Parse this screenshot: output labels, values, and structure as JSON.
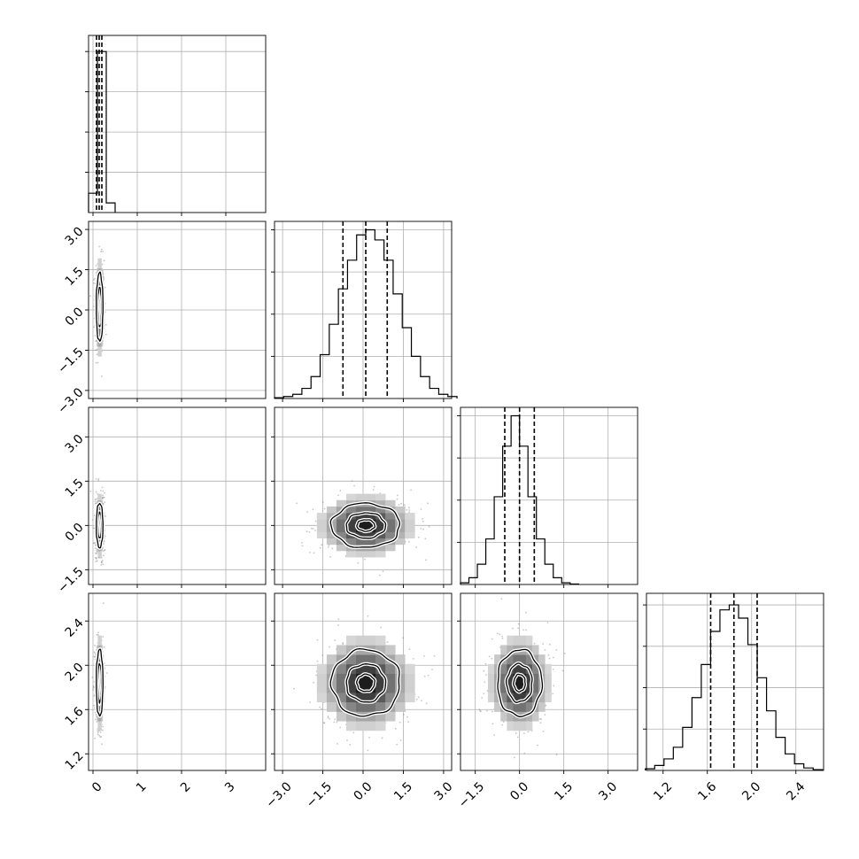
{
  "chart_data": {
    "type": "corner",
    "params": [
      {
        "range": [
          -0.1,
          3.9
        ],
        "ticks": [
          0,
          1,
          2,
          3
        ],
        "ticklabels": [
          "0",
          "1",
          "2",
          "3"
        ],
        "mean": 0.15,
        "sd": 0.05,
        "quantiles": [
          0.08,
          0.14,
          0.2
        ]
      },
      {
        "range": [
          -3.3,
          3.3
        ],
        "ticks": [
          -3.0,
          -1.5,
          0.0,
          1.5,
          3.0
        ],
        "ticklabels": [
          "−3.0",
          "−1.5",
          "0.0",
          "1.5",
          "3.0"
        ],
        "mean": 0.1,
        "sd": 0.85,
        "quantiles": [
          -0.75,
          0.1,
          0.9
        ]
      },
      {
        "range": [
          -2.0,
          4.0
        ],
        "ticks": [
          -1.5,
          0.0,
          1.5,
          3.0
        ],
        "ticklabels": [
          "−1.5",
          "0.0",
          "1.5",
          "3.0"
        ],
        "mean": 0.0,
        "sd": 0.5,
        "quantiles": [
          -0.5,
          0.0,
          0.5
        ]
      },
      {
        "range": [
          1.05,
          2.65
        ],
        "ticks": [
          1.2,
          1.6,
          2.0,
          2.4
        ],
        "ticklabels": [
          "1.2",
          "1.6",
          "2.0",
          "2.4"
        ],
        "mean": 1.84,
        "sd": 0.2,
        "quantiles": [
          1.63,
          1.84,
          2.05
        ]
      }
    ],
    "histograms": [
      {
        "param": 0,
        "bins": [
          -0.1,
          0.1,
          0.3,
          0.5
        ],
        "values": [
          0.12,
          1.0,
          0.06
        ],
        "ylim": [
          0,
          1.1
        ],
        "yticks": [
          0.25,
          0.5,
          0.75,
          1.0
        ]
      },
      {
        "param": 1,
        "values": [
          0.005,
          0.012,
          0.025,
          0.06,
          0.13,
          0.26,
          0.44,
          0.65,
          0.82,
          0.97,
          1.0,
          0.94,
          0.82,
          0.62,
          0.42,
          0.25,
          0.13,
          0.06,
          0.025,
          0.012
        ],
        "ylim": [
          0,
          1.05
        ],
        "yticks": [
          0.25,
          0.5,
          0.75,
          1.0
        ]
      },
      {
        "param": 2,
        "values": [
          0.01,
          0.04,
          0.12,
          0.27,
          0.52,
          0.82,
          1.0,
          0.82,
          0.52,
          0.27,
          0.12,
          0.04,
          0.01,
          0.003
        ],
        "ylim": [
          0,
          1.05
        ],
        "yticks": [
          0.25,
          0.5,
          0.75,
          1.0
        ]
      },
      {
        "param": 3,
        "values": [
          0.01,
          0.03,
          0.07,
          0.14,
          0.26,
          0.44,
          0.64,
          0.84,
          0.97,
          1.0,
          0.92,
          0.76,
          0.56,
          0.36,
          0.2,
          0.1,
          0.04,
          0.015,
          0.005
        ],
        "ylim": [
          0,
          1.07
        ],
        "yticks": [
          0.25,
          0.5,
          0.75,
          1.0
        ]
      }
    ],
    "panels_2d": [
      {
        "x": 0,
        "y": 1,
        "type": "density-contour",
        "contour_levels": [
          0.39,
          0.86,
          1.5
        ]
      },
      {
        "x": 0,
        "y": 2,
        "type": "density-contour",
        "contour_levels": [
          0.39,
          0.86,
          1.5
        ]
      },
      {
        "x": 0,
        "y": 3,
        "type": "density-contour",
        "contour_levels": [
          0.39,
          0.86,
          1.5
        ]
      },
      {
        "x": 1,
        "y": 2,
        "type": "density-contour",
        "contour_levels": [
          0.39,
          0.86,
          1.5
        ]
      },
      {
        "x": 1,
        "y": 3,
        "type": "density-contour",
        "contour_levels": [
          0.39,
          0.86,
          1.5
        ]
      },
      {
        "x": 2,
        "y": 3,
        "type": "density-contour",
        "contour_levels": [
          0.39,
          0.86,
          1.5
        ]
      }
    ],
    "grid": true,
    "colors": {
      "points": "#808080",
      "contour": "#000000",
      "density_dark": "#000000"
    }
  }
}
